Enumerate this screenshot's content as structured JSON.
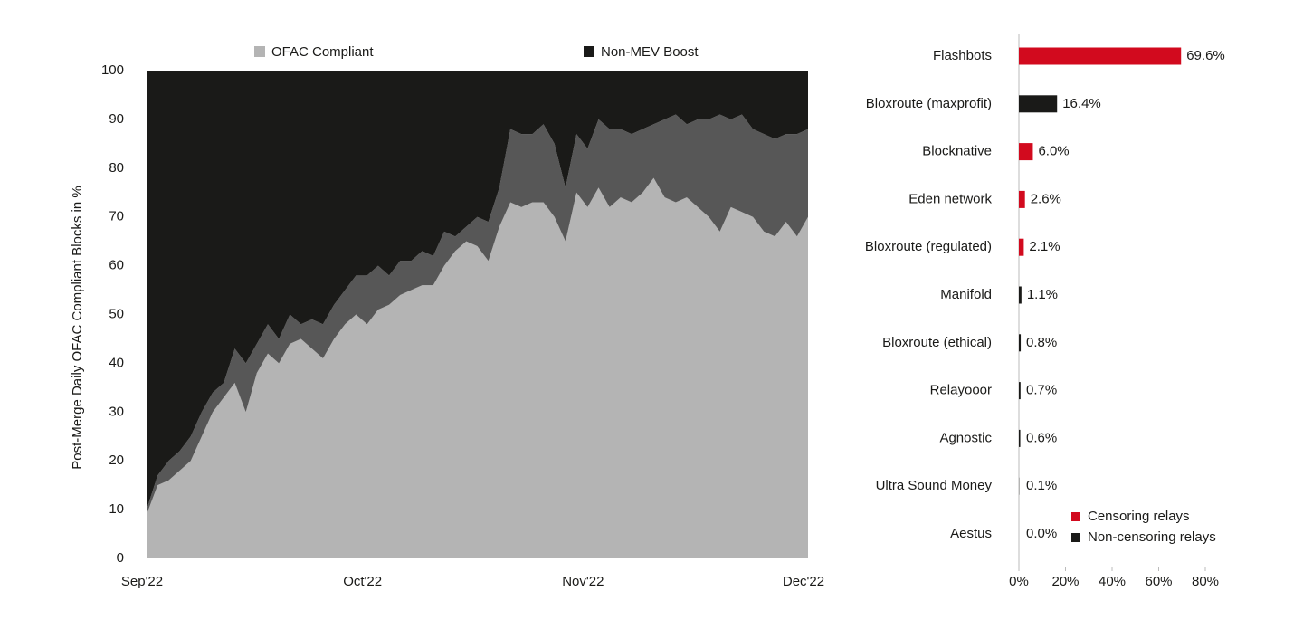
{
  "chart_data": [
    {
      "type": "area",
      "stacked": true,
      "ylabel": "Post-Merge Daily OFAC Compliant Blocks in %",
      "categories": [
        "Sep'22",
        null,
        null,
        null,
        null,
        null,
        null,
        null,
        null,
        null,
        null,
        null,
        null,
        null,
        null,
        null,
        null,
        null,
        null,
        null,
        "Oct'22",
        null,
        null,
        null,
        null,
        null,
        null,
        null,
        null,
        null,
        null,
        null,
        null,
        null,
        null,
        null,
        null,
        null,
        null,
        null,
        "Nov'22",
        null,
        null,
        null,
        null,
        null,
        null,
        null,
        null,
        null,
        null,
        null,
        null,
        null,
        null,
        null,
        null,
        null,
        null,
        null,
        "Dec'22"
      ],
      "series": [
        {
          "name": "OFAC Compliant",
          "color": "#b4b4b4",
          "values": [
            9,
            15,
            16,
            18,
            20,
            25,
            30,
            33,
            36,
            30,
            38,
            42,
            40,
            44,
            45,
            43,
            41,
            45,
            48,
            50,
            48,
            51,
            52,
            54,
            55,
            56,
            56,
            60,
            63,
            65,
            64,
            61,
            68,
            73,
            72,
            73,
            73,
            70,
            65,
            75,
            72,
            76,
            72,
            74,
            73,
            75,
            78,
            74,
            73,
            74,
            72,
            70,
            67,
            72,
            71,
            70,
            67,
            66,
            69,
            66,
            70
          ]
        },
        {
          "color": "#575757",
          "values": [
            1,
            2,
            4,
            4,
            5,
            5,
            4,
            3,
            7,
            10,
            6,
            6,
            5,
            6,
            3,
            6,
            7,
            7,
            7,
            8,
            10,
            9,
            6,
            7,
            6,
            7,
            6,
            7,
            3,
            3,
            6,
            8,
            8,
            15,
            15,
            14,
            16,
            15,
            11,
            12,
            12,
            14,
            16,
            14,
            14,
            13,
            11,
            16,
            18,
            15,
            18,
            20,
            24,
            18,
            20,
            18,
            20,
            20,
            18,
            21,
            18
          ]
        },
        {
          "name": "Non-MEV Boost",
          "color": "#1a1a18",
          "values": [
            90,
            83,
            80,
            78,
            75,
            70,
            66,
            64,
            57,
            60,
            56,
            52,
            55,
            50,
            52,
            51,
            52,
            48,
            45,
            42,
            42,
            40,
            42,
            39,
            39,
            37,
            38,
            33,
            34,
            32,
            30,
            31,
            24,
            12,
            13,
            13,
            11,
            15,
            24,
            13,
            16,
            10,
            12,
            12,
            13,
            12,
            11,
            10,
            9,
            11,
            10,
            10,
            9,
            10,
            9,
            12,
            13,
            14,
            13,
            13,
            12
          ]
        }
      ],
      "ylim": [
        0,
        100
      ],
      "yticks": [
        0,
        10,
        20,
        30,
        40,
        50,
        60,
        70,
        80,
        90,
        100
      ]
    },
    {
      "type": "bar",
      "orientation": "horizontal",
      "categories": [
        "Flashbots",
        "Bloxroute (maxprofit)",
        "Blocknative",
        "Eden network",
        "Bloxroute (regulated)",
        "Manifold",
        "Bloxroute (ethical)",
        "Relayooor",
        "Agnostic",
        "Ultra Sound Money",
        "Aestus"
      ],
      "values": [
        69.6,
        16.4,
        6.0,
        2.6,
        2.1,
        1.1,
        0.8,
        0.7,
        0.6,
        0.1,
        0.0
      ],
      "value_labels": [
        "69.6%",
        "16.4%",
        "6.0%",
        "2.6%",
        "2.1%",
        "1.1%",
        "0.8%",
        "0.7%",
        "0.6%",
        "0.1%",
        "0.0%"
      ],
      "colors": [
        "#d20a1e",
        "#1a1a18",
        "#d20a1e",
        "#d20a1e",
        "#d20a1e",
        "#1a1a18",
        "#1a1a18",
        "#1a1a18",
        "#1a1a18",
        "#1a1a18",
        "#1a1a18"
      ],
      "legend": [
        {
          "name": "Censoring relays",
          "color": "#d20a1e"
        },
        {
          "name": "Non-censoring relays",
          "color": "#1a1a18"
        }
      ],
      "xlim": [
        0,
        80
      ],
      "xticks": [
        {
          "value": 0,
          "label": "0%"
        },
        {
          "value": 20,
          "label": "20%"
        },
        {
          "value": 40,
          "label": "40%"
        },
        {
          "value": 60,
          "label": "60%"
        },
        {
          "value": 80,
          "label": "80%"
        }
      ]
    }
  ]
}
